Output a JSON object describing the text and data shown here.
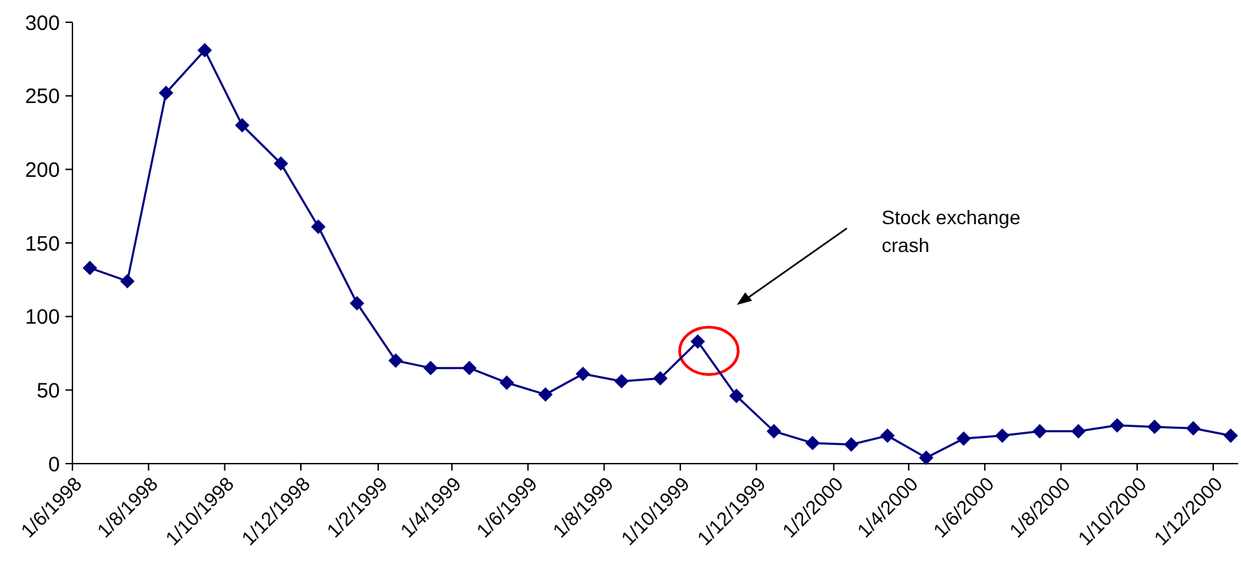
{
  "chart_data": {
    "type": "line",
    "marker": "diamond",
    "line_style": "solid",
    "grid": false,
    "x": [
      "1998-06-15",
      "1998-07-15",
      "1998-08-15",
      "1998-09-15",
      "1998-10-15",
      "1998-11-15",
      "1998-12-15",
      "1999-01-15",
      "1999-02-15",
      "1999-03-15",
      "1999-04-15",
      "1999-05-15",
      "1999-06-15",
      "1999-07-15",
      "1999-08-15",
      "1999-09-15",
      "1999-10-15",
      "1999-11-15",
      "1999-12-15",
      "2000-01-15",
      "2000-02-15",
      "2000-03-15",
      "2000-04-15",
      "2000-05-15",
      "2000-06-15",
      "2000-07-15",
      "2000-08-15",
      "2000-09-15",
      "2000-10-15",
      "2000-11-15",
      "2000-12-15"
    ],
    "series": [
      {
        "color": "#000080",
        "values": [
          133,
          124,
          252,
          281,
          230,
          204,
          161,
          109,
          70,
          65,
          65,
          55,
          47,
          61,
          56,
          58,
          83,
          46,
          22,
          14,
          13,
          19,
          4,
          17,
          19,
          22,
          22,
          26,
          25,
          24,
          19
        ]
      }
    ],
    "xlim": [
      "1998-06-01",
      "2000-12-21"
    ],
    "xticks": [
      {
        "value": "1998-06-01",
        "label": "1/6/1998"
      },
      {
        "value": "1998-08-01",
        "label": "1/8/1998"
      },
      {
        "value": "1998-10-01",
        "label": "1/10/1998"
      },
      {
        "value": "1998-12-01",
        "label": "1/12/1998"
      },
      {
        "value": "1999-02-01",
        "label": "1/2/1999"
      },
      {
        "value": "1999-04-01",
        "label": "1/4/1999"
      },
      {
        "value": "1999-06-01",
        "label": "1/6/1999"
      },
      {
        "value": "1999-08-01",
        "label": "1/8/1999"
      },
      {
        "value": "1999-10-01",
        "label": "1/10/1999"
      },
      {
        "value": "1999-12-01",
        "label": "1/12/1999"
      },
      {
        "value": "2000-02-01",
        "label": "1/2/2000"
      },
      {
        "value": "2000-04-01",
        "label": "1/4/2000"
      },
      {
        "value": "2000-06-01",
        "label": "1/6/2000"
      },
      {
        "value": "2000-08-01",
        "label": "1/8/2000"
      },
      {
        "value": "2000-10-01",
        "label": "1/10/2000"
      },
      {
        "value": "2000-12-01",
        "label": "1/12/2000"
      }
    ],
    "ylim": [
      0,
      300
    ],
    "yticks": [
      0,
      50,
      100,
      150,
      200,
      250,
      300
    ],
    "annotations": [
      "Stock exchange crash"
    ]
  }
}
